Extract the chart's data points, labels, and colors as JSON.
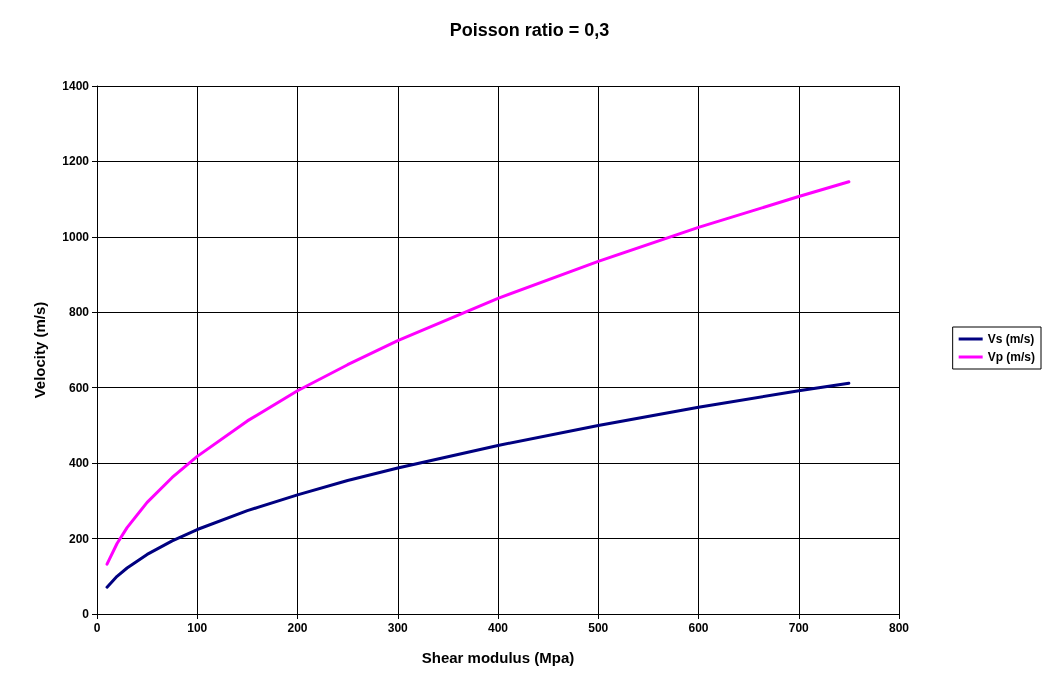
{
  "chart_data": {
    "type": "line",
    "title": "Poisson ratio = 0,3",
    "xlabel": "Shear modulus (Mpa)",
    "ylabel": "Velocity (m/s)",
    "x": [
      10,
      20,
      30,
      50,
      75,
      100,
      150,
      200,
      250,
      300,
      400,
      500,
      600,
      700,
      750
    ],
    "series": [
      {
        "name": "Vs (m/s)",
        "color": "#000080",
        "values": [
          71,
          100,
          122,
          158,
          194,
          224,
          274,
          316,
          354,
          387,
          447,
          500,
          548,
          592,
          612
        ]
      },
      {
        "name": "Vp (m/s)",
        "color": "#ff00ff",
        "values": [
          132,
          187,
          229,
          296,
          362,
          418,
          512,
          592,
          661,
          725,
          837,
          935,
          1025,
          1107,
          1146
        ]
      }
    ],
    "xlim": [
      0,
      800
    ],
    "xticks": [
      0,
      100,
      200,
      300,
      400,
      500,
      600,
      700,
      800
    ],
    "ylim": [
      0,
      1400
    ],
    "yticks": [
      0,
      200,
      400,
      600,
      800,
      1000,
      1200,
      1400
    ],
    "grid": true,
    "legend": "right",
    "marker": "none",
    "line_style": "solid"
  }
}
